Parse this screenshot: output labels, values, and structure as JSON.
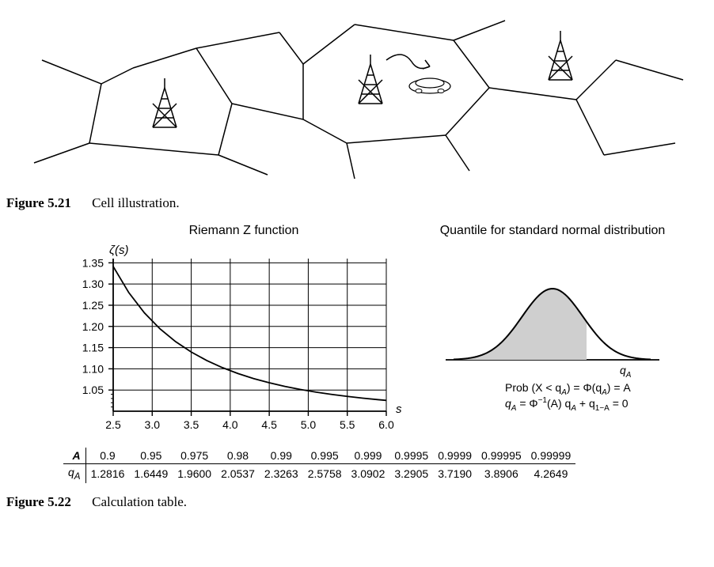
{
  "figure21": {
    "label": "Figure 5.21",
    "caption": "Cell illustration."
  },
  "figure22": {
    "label": "Figure 5.22",
    "caption": "Calculation table."
  },
  "riemann": {
    "title": "Riemann Z function",
    "ylabel": "ζ(s)",
    "xlabel": "s",
    "xticks": [
      2.5,
      3.0,
      3.5,
      4.0,
      4.5,
      5.0,
      5.5,
      6.0
    ],
    "yticks": [
      1.05,
      1.1,
      1.15,
      1.2,
      1.25,
      1.3,
      1.35
    ],
    "xlim": [
      2.5,
      6.0
    ],
    "ylim": [
      1.0,
      1.36
    ],
    "points": [
      [
        2.5,
        1.3415
      ],
      [
        2.7,
        1.2797
      ],
      [
        2.9,
        1.232
      ],
      [
        3.1,
        1.1943
      ],
      [
        3.3,
        1.1641
      ],
      [
        3.5,
        1.1396
      ],
      [
        3.7,
        1.1195
      ],
      [
        3.9,
        1.1028
      ],
      [
        4.1,
        1.0888
      ],
      [
        4.3,
        1.077
      ],
      [
        4.5,
        1.0671
      ],
      [
        4.7,
        1.0586
      ],
      [
        4.9,
        1.0513
      ],
      [
        5.1,
        1.045
      ],
      [
        5.3,
        1.0396
      ],
      [
        5.5,
        1.0349
      ],
      [
        5.7,
        1.0308
      ],
      [
        5.9,
        1.0272
      ],
      [
        6.0,
        1.0255
      ]
    ],
    "line_color": "#000000",
    "grid_color": "#000000",
    "background_color": "#ffffff",
    "line_width": 1.8
  },
  "quantile": {
    "title": "Quantile for standard normal distribution",
    "qa_label": "q",
    "qa_sub": "A",
    "eq1_a": "Prob (X < q",
    "eq1_b": ") = Φ(q",
    "eq1_c": ") = A",
    "eq2_a": "q",
    "eq2_b": " =  Φ",
    "eq2_c": "(A)  q",
    "eq2_d": " + q",
    "eq2_e": " = 0",
    "sup_minus1": "−1",
    "sub_1mA": "1−A",
    "fill_color": "#cfcfcf",
    "stroke_color": "#000000"
  },
  "table": {
    "header_label": "A",
    "row_label_html": "q<sub>A</sub>",
    "A": [
      "0.9",
      "0.95",
      "0.975",
      "0.98",
      "0.99",
      "0.995",
      "0.999",
      "0.9995",
      "0.9999",
      "0.99995",
      "0.99999"
    ],
    "qA": [
      "1.2816",
      "1.6449",
      "1.9600",
      "2.0537",
      "2.3263",
      "2.5758",
      "3.0902",
      "3.2905",
      "3.7190",
      "3.8906",
      "4.2649"
    ]
  },
  "colors": {
    "text": "#000000",
    "bg": "#ffffff"
  }
}
